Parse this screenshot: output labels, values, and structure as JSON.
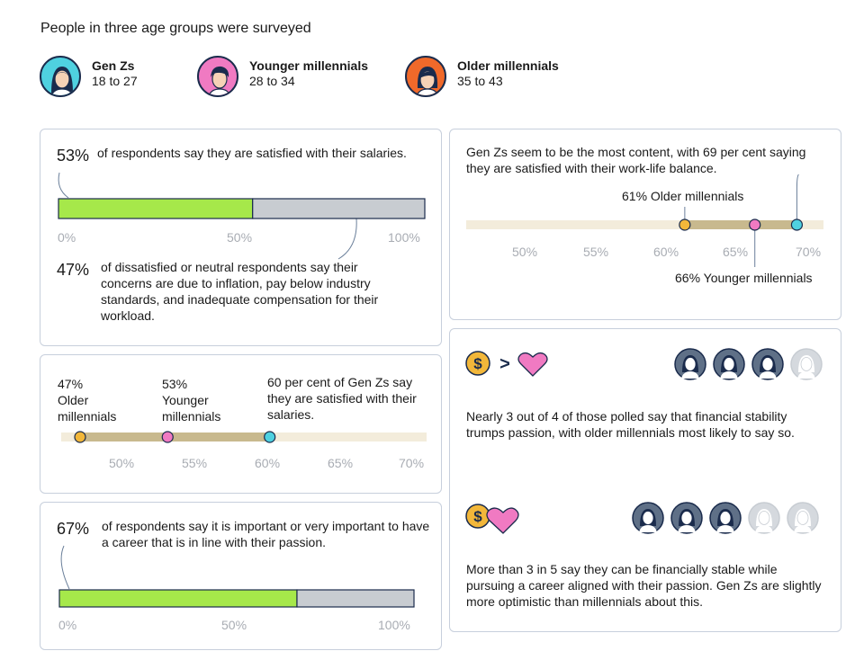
{
  "title": "People in three age groups were surveyed",
  "groups": [
    {
      "name": "Gen Zs",
      "range": "18 to 27",
      "color": "#4fd1e0"
    },
    {
      "name": "Younger millennials",
      "range": "28 to 34",
      "color": "#f07ac2"
    },
    {
      "name": "Older millennials",
      "range": "35 to 43",
      "color": "#f0692a"
    }
  ],
  "colors": {
    "green": "#a6e84a",
    "grey": "#c8ccd1",
    "track": "#f3ecdb",
    "range": "#c8b98e",
    "navy": "#1a2b4c"
  },
  "salary": {
    "pct": "53%",
    "text": "of respondents say they are satisfied with their salaries.",
    "pct2": "47%",
    "text2": "of dissatisfied or neutral respondents say their concerns are due to inflation, pay below industry standards, and inadequate compensation for their workload."
  },
  "salary_dots": {
    "older": {
      "pct": "47%",
      "label": "Older millennials"
    },
    "younger": {
      "pct": "53%",
      "label": "Younger millennials"
    },
    "genz": {
      "label": "60 per cent of Gen Zs say they are satisfied with their salaries."
    }
  },
  "passion": {
    "pct": "67%",
    "text": "of respondents say it is important or very important to have a career that is in line with their passion."
  },
  "worklife": {
    "text": "Gen Zs seem to be the most content, with 69 per cent saying they are satisfied with their work-life balance.",
    "older_label": "61% Older millennials",
    "younger_label": "66% Younger millennials"
  },
  "stability": {
    "text1": "Nearly 3 out of 4 of those polled say that financial stability trumps passion, with older millennials most likely to say so.",
    "text2": "More than 3 in 5 say they can be financially stable while pursuing a career aligned with their passion. Gen Zs are slightly more optimistic than millennials about this.",
    "gt_symbol": ">",
    "dollar": "$"
  },
  "chart_data": [
    {
      "type": "bar",
      "categories": [
        "Satisfied with salaries"
      ],
      "values": [
        53
      ],
      "xlim": [
        0,
        100
      ],
      "ticks": [
        "0%",
        "50%",
        "100%"
      ]
    },
    {
      "type": "scatter",
      "series": [
        {
          "name": "Older millennials",
          "values": [
            47
          ]
        },
        {
          "name": "Younger millennials",
          "values": [
            53
          ]
        },
        {
          "name": "Gen Zs",
          "values": [
            60
          ]
        }
      ],
      "xlim": [
        47,
        71
      ],
      "ticks": [
        "50%",
        "55%",
        "60%",
        "65%",
        "70%"
      ]
    },
    {
      "type": "bar",
      "categories": [
        "Career in line with passion"
      ],
      "values": [
        67
      ],
      "xlim": [
        0,
        100
      ],
      "ticks": [
        "0%",
        "50%",
        "100%"
      ]
    },
    {
      "type": "scatter",
      "series": [
        {
          "name": "Older millennials",
          "values": [
            61
          ]
        },
        {
          "name": "Younger millennials",
          "values": [
            66
          ]
        },
        {
          "name": "Gen Zs",
          "values": [
            69
          ]
        }
      ],
      "xlim": [
        45.4,
        70.9
      ],
      "ticks": [
        "50%",
        "55%",
        "60%",
        "65%",
        "70%"
      ]
    }
  ],
  "people_icons": {
    "row1": {
      "filled": 3,
      "total": 4
    },
    "row2": {
      "filled": 3,
      "total": 5
    }
  }
}
